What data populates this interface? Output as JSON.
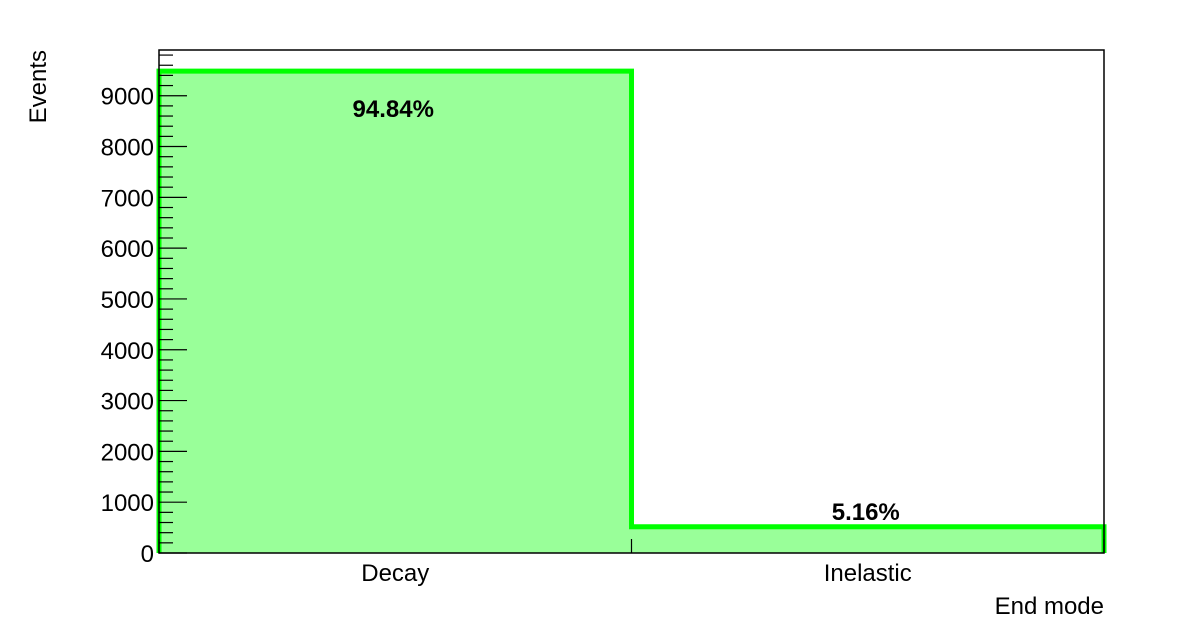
{
  "chart_data": {
    "type": "bar",
    "categories": [
      "Decay",
      "Inelastic"
    ],
    "values": [
      9484,
      516
    ],
    "data_labels": [
      "94.84%",
      "5.16%"
    ],
    "xlabel": "End mode",
    "ylabel": "Events",
    "ylim": [
      0,
      9900
    ],
    "yticks": [
      0,
      1000,
      2000,
      3000,
      4000,
      5000,
      6000,
      7000,
      8000,
      9000
    ],
    "ytick_labels": [
      "0",
      "1000",
      "2000",
      "3000",
      "4000",
      "5000",
      "6000",
      "7000",
      "8000",
      "9000"
    ],
    "grid": false,
    "style": "step-filled histogram",
    "colors": {
      "fill": "#99ff99",
      "line": "#00ff00"
    }
  }
}
